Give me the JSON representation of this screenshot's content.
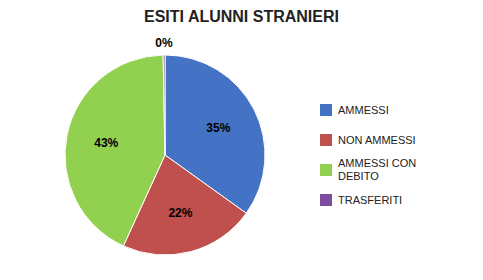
{
  "chart_data": {
    "type": "pie",
    "title": "ESITI ALUNNI STRANIERI",
    "categories": [
      "AMMESSI",
      "NON AMMESSI",
      "AMMESSI CON\nDEBITO",
      "TRASFERITI"
    ],
    "values": [
      35,
      22,
      43,
      0.3
    ],
    "value_labels": [
      "35%",
      "22%",
      "43%",
      "0%"
    ],
    "colors": [
      "#4472C4",
      "#C0504D",
      "#92D050",
      "#7B4F9E"
    ],
    "data_labels": true,
    "legend": "right"
  }
}
